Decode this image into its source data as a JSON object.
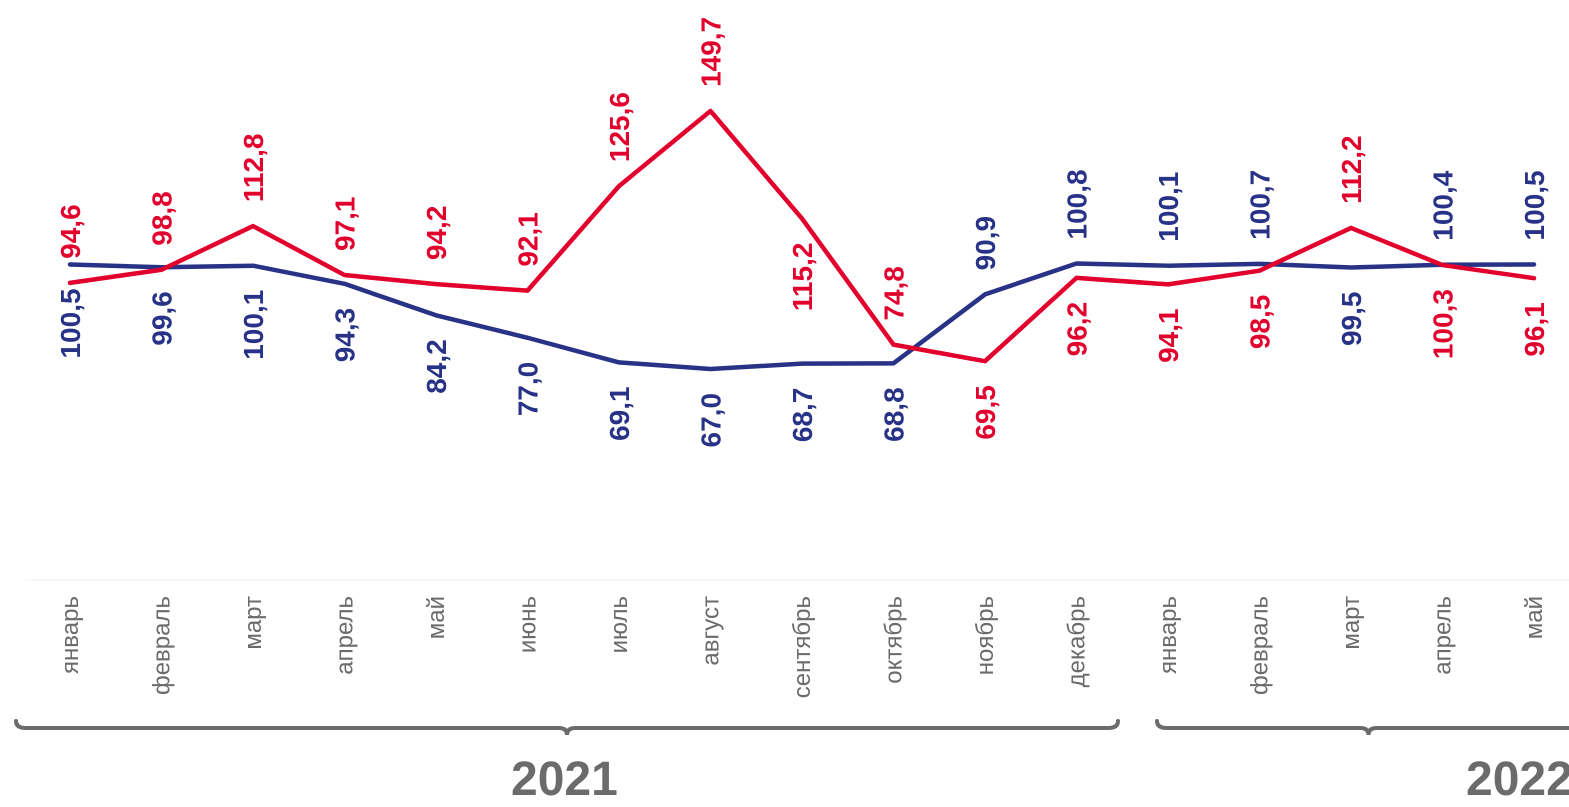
{
  "chart_data": {
    "type": "line",
    "categories": [
      "январь",
      "февраль",
      "март",
      "апрель",
      "май",
      "июнь",
      "июль",
      "август",
      "сентябрь",
      "октябрь",
      "ноябрь",
      "декабрь",
      "январь",
      "февраль",
      "март",
      "апрель",
      "май"
    ],
    "series": [
      {
        "name": "",
        "color": "#283286",
        "values": [
          100.5,
          99.6,
          100.1,
          94.3,
          84.2,
          77.0,
          69.1,
          67.0,
          68.7,
          68.8,
          90.9,
          100.8,
          100.1,
          100.7,
          99.5,
          100.4,
          100.5
        ],
        "labels": [
          "100,5",
          "99,6",
          "100,1",
          "94,3",
          "84,2",
          "77,0",
          "69,1",
          "67,0",
          "68,7",
          "68,8",
          "90,9",
          "100,8",
          "100,1",
          "100,7",
          "99,5",
          "100,4",
          "100,5"
        ]
      },
      {
        "name": "",
        "color": "#e2002d",
        "values": [
          94.6,
          98.8,
          112.8,
          97.1,
          94.2,
          92.1,
          125.6,
          149.7,
          115.2,
          74.8,
          69.5,
          96.2,
          94.1,
          98.5,
          112.2,
          100.3,
          96.1
        ],
        "labels": [
          "94,6",
          "98,8",
          "112,8",
          "97,1",
          "94,2",
          "92,1",
          "125,6",
          "149,7",
          "115,2",
          "74,8",
          "69,5",
          "96,2",
          "94,1",
          "98,5",
          "112,2",
          "100,3",
          "96,1"
        ]
      }
    ],
    "year_groups": [
      {
        "label": "2021",
        "from": 0,
        "to": 11
      },
      {
        "label": "2022",
        "from": 12,
        "to": 16
      }
    ],
    "grid": false,
    "legend": "none",
    "axis_color": "#f2f2f2",
    "tick_label_color": "#6b6b6b",
    "bracket_color": "#6b6b6b"
  }
}
